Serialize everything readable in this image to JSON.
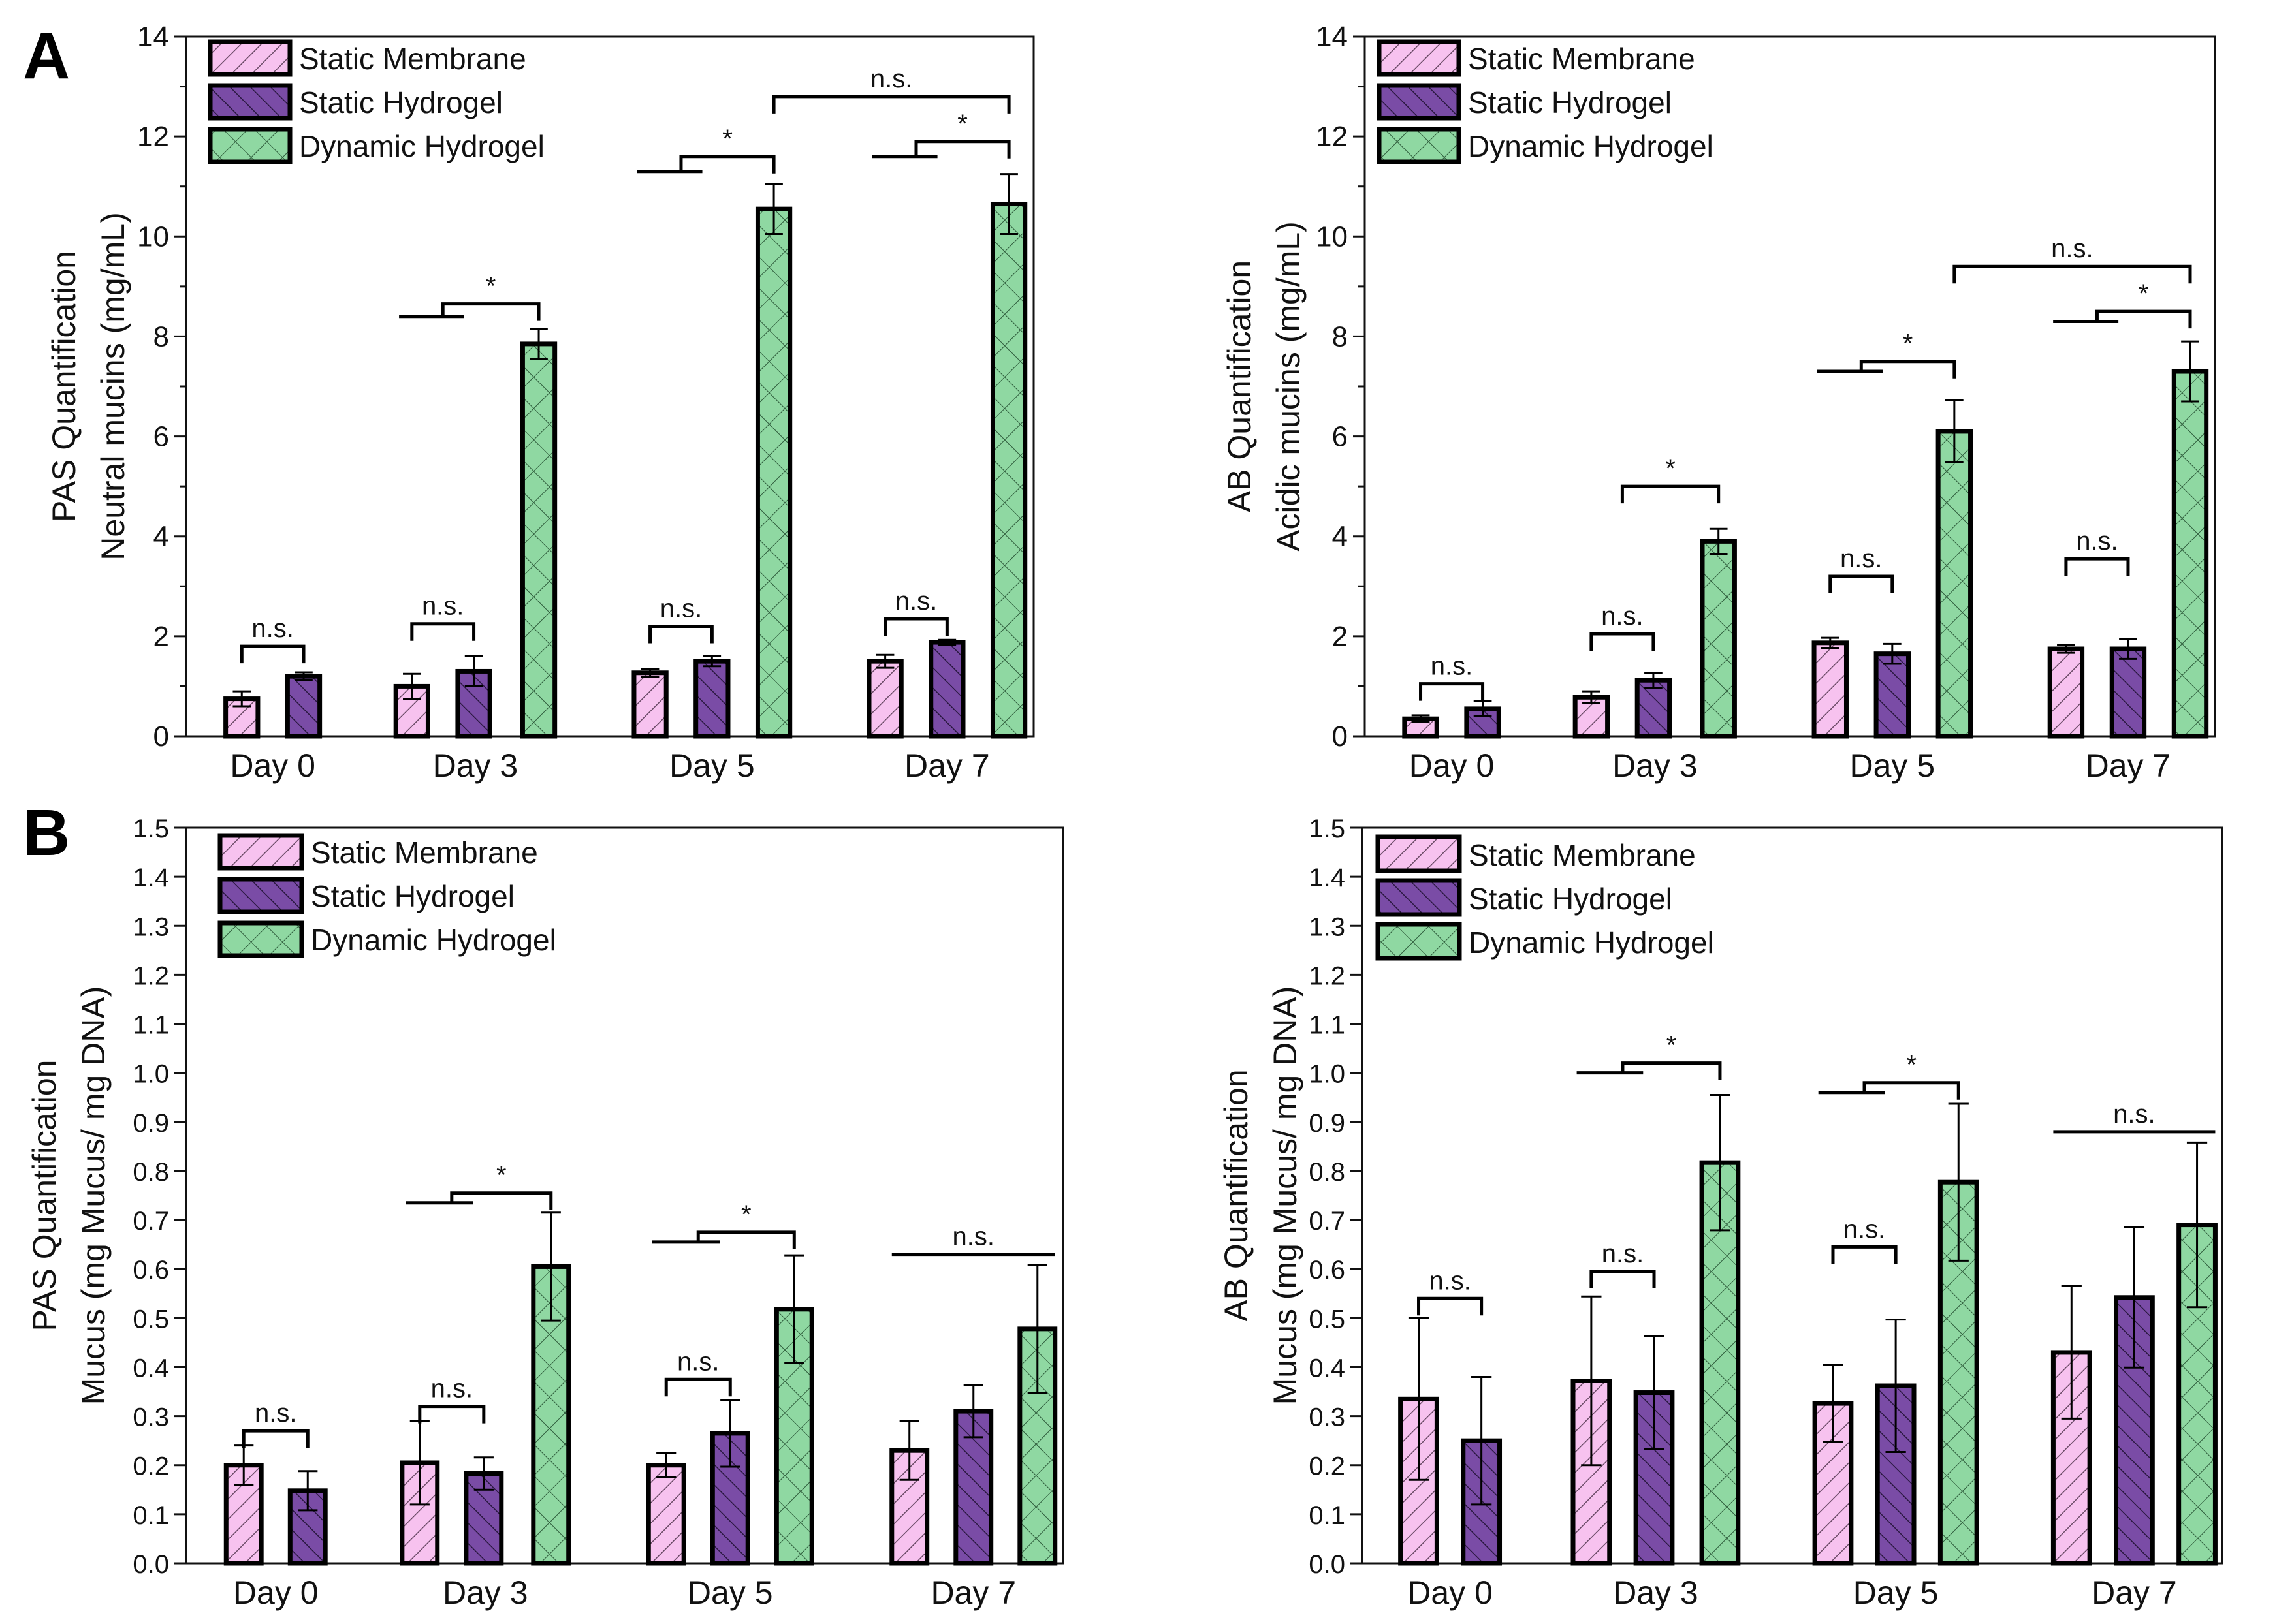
{
  "colors": {
    "static_membrane": "#f7c2ef",
    "static_hydrogel": "#7a4ca6",
    "dynamic_hydrogel": "#8fd8a2",
    "axis": "#111111"
  },
  "legend": [
    "Static Membrane",
    "Static Hydrogel",
    "Dynamic Hydrogel"
  ],
  "chart_data": [
    {
      "type": "bar",
      "panel_label": "A",
      "id": "a-left",
      "ylabel": [
        "PAS Quantification",
        "Neutral mucins (mg/mL)"
      ],
      "categories": [
        "Day 0",
        "Day 3",
        "Day 5",
        "Day 7"
      ],
      "ylim": [
        0,
        14
      ],
      "yticks": [
        0,
        2,
        4,
        6,
        8,
        10,
        12,
        14
      ],
      "tick_decimals": 0,
      "minor_step": 1,
      "legend_placement": "top-left",
      "series": [
        {
          "name": "Static Membrane",
          "values": [
            0.75,
            1.0,
            1.27,
            1.5
          ],
          "errors": [
            0.15,
            0.25,
            0.08,
            0.13
          ]
        },
        {
          "name": "Static Hydrogel",
          "values": [
            1.2,
            1.3,
            1.5,
            1.88
          ],
          "errors": [
            0.08,
            0.3,
            0.1,
            0.05
          ]
        },
        {
          "name": "Dynamic Hydrogel",
          "values": [
            null,
            7.85,
            10.55,
            10.65
          ],
          "errors": [
            null,
            0.3,
            0.5,
            0.6
          ]
        }
      ],
      "annotations": [
        {
          "kind": "bracket",
          "from": [
            0,
            0
          ],
          "to": [
            0,
            1
          ],
          "y": 1.8,
          "label": "n.s."
        },
        {
          "kind": "bracket",
          "from": [
            1,
            0
          ],
          "to": [
            1,
            1
          ],
          "y": 2.25,
          "label": "n.s."
        },
        {
          "kind": "combined",
          "from": [
            1,
            0
          ],
          "to": [
            1,
            2
          ],
          "y_low": 8.4,
          "y": 8.65,
          "label": "*"
        },
        {
          "kind": "bracket",
          "from": [
            2,
            0
          ],
          "to": [
            2,
            1
          ],
          "y": 2.2,
          "label": "n.s."
        },
        {
          "kind": "combined",
          "from": [
            2,
            0
          ],
          "to": [
            2,
            2
          ],
          "y_low": 11.3,
          "y": 11.6,
          "label": "*"
        },
        {
          "kind": "bracket",
          "from": [
            3,
            0
          ],
          "to": [
            3,
            1
          ],
          "y": 2.35,
          "label": "n.s."
        },
        {
          "kind": "combined",
          "from": [
            3,
            0
          ],
          "to": [
            3,
            2
          ],
          "y_low": 11.6,
          "y": 11.9,
          "label": "*"
        },
        {
          "kind": "bracket",
          "from": [
            2,
            2
          ],
          "to": [
            3,
            2
          ],
          "y": 12.8,
          "label": "n.s."
        }
      ]
    },
    {
      "type": "bar",
      "id": "a-right",
      "ylabel": [
        "AB Quantification",
        "Acidic mucins (mg/mL)"
      ],
      "categories": [
        "Day 0",
        "Day 3",
        "Day 5",
        "Day 7"
      ],
      "ylim": [
        0,
        14
      ],
      "yticks": [
        0,
        2,
        4,
        6,
        8,
        10,
        12,
        14
      ],
      "tick_decimals": 0,
      "minor_step": 1,
      "legend_placement": "top-left",
      "series": [
        {
          "name": "Static Membrane",
          "values": [
            0.35,
            0.78,
            1.87,
            1.75
          ],
          "errors": [
            0.07,
            0.12,
            0.1,
            0.08
          ]
        },
        {
          "name": "Static Hydrogel",
          "values": [
            0.55,
            1.12,
            1.65,
            1.75
          ],
          "errors": [
            0.15,
            0.15,
            0.2,
            0.2
          ]
        },
        {
          "name": "Dynamic Hydrogel",
          "values": [
            null,
            3.9,
            6.1,
            7.3
          ],
          "errors": [
            null,
            0.25,
            0.62,
            0.6
          ]
        }
      ],
      "annotations": [
        {
          "kind": "bracket",
          "from": [
            0,
            0
          ],
          "to": [
            0,
            1
          ],
          "y": 1.05,
          "label": "n.s."
        },
        {
          "kind": "bracket",
          "from": [
            1,
            0
          ],
          "to": [
            1,
            1
          ],
          "y": 2.05,
          "label": "n.s."
        },
        {
          "kind": "bracket",
          "from": [
            1,
            0.5
          ],
          "to": [
            1,
            2
          ],
          "y": 5.0,
          "label": "*"
        },
        {
          "kind": "bracket",
          "from": [
            2,
            0
          ],
          "to": [
            2,
            1
          ],
          "y": 3.2,
          "label": "n.s."
        },
        {
          "kind": "combined",
          "from": [
            2,
            0
          ],
          "to": [
            2,
            2
          ],
          "y_low": 7.3,
          "y": 7.5,
          "label": "*"
        },
        {
          "kind": "bracket",
          "from": [
            3,
            0
          ],
          "to": [
            3,
            1
          ],
          "y": 3.55,
          "label": "n.s."
        },
        {
          "kind": "combined",
          "from": [
            3,
            0
          ],
          "to": [
            3,
            2
          ],
          "y_low": 8.3,
          "y": 8.5,
          "label": "*"
        },
        {
          "kind": "bracket",
          "from": [
            2,
            2
          ],
          "to": [
            3,
            2
          ],
          "y": 9.4,
          "label": "n.s."
        }
      ]
    },
    {
      "type": "bar",
      "panel_label": "B",
      "id": "b-left",
      "ylabel": [
        "PAS Quantification",
        "Mucus (mg Mucus/ mg DNA)"
      ],
      "categories": [
        "Day 0",
        "Day 3",
        "Day 5",
        "Day 7"
      ],
      "ylim": [
        0,
        1.5
      ],
      "yticks": [
        0.0,
        0.1,
        0.2,
        0.3,
        0.4,
        0.5,
        0.6,
        0.7,
        0.8,
        0.9,
        1.0,
        1.1,
        1.2,
        1.3,
        1.4,
        1.5
      ],
      "tick_decimals": 1,
      "minor_step": null,
      "legend_placement": "top-left",
      "series": [
        {
          "name": "Static Membrane",
          "values": [
            0.2,
            0.205,
            0.2,
            0.23
          ],
          "errors": [
            0.04,
            0.085,
            0.025,
            0.06
          ]
        },
        {
          "name": "Static Hydrogel",
          "values": [
            0.148,
            0.183,
            0.265,
            0.31
          ],
          "errors": [
            0.04,
            0.033,
            0.068,
            0.053
          ]
        },
        {
          "name": "Dynamic Hydrogel",
          "values": [
            null,
            0.605,
            0.518,
            0.478
          ],
          "errors": [
            null,
            0.11,
            0.11,
            0.13
          ]
        }
      ],
      "annotations": [
        {
          "kind": "bracket",
          "from": [
            0,
            0
          ],
          "to": [
            0,
            1
          ],
          "y": 0.27,
          "label": "n.s."
        },
        {
          "kind": "bracket",
          "from": [
            1,
            0
          ],
          "to": [
            1,
            1
          ],
          "y": 0.32,
          "label": "n.s."
        },
        {
          "kind": "combined",
          "from": [
            1,
            0
          ],
          "to": [
            1,
            2
          ],
          "y_low": 0.735,
          "y": 0.755,
          "label": "*"
        },
        {
          "kind": "bracket",
          "from": [
            2,
            0
          ],
          "to": [
            2,
            1
          ],
          "y": 0.375,
          "label": "n.s."
        },
        {
          "kind": "combined",
          "from": [
            2,
            0
          ],
          "to": [
            2,
            2
          ],
          "y_low": 0.655,
          "y": 0.675,
          "label": "*"
        },
        {
          "kind": "line",
          "from": [
            3,
            0
          ],
          "to": [
            3,
            2
          ],
          "y": 0.63,
          "label": "n.s."
        }
      ]
    },
    {
      "type": "bar",
      "id": "b-right",
      "ylabel": [
        "AB Quantification",
        "Mucus (mg Mucus/ mg DNA)"
      ],
      "categories": [
        "Day 0",
        "Day 3",
        "Day 5",
        "Day 7"
      ],
      "ylim": [
        0,
        1.5
      ],
      "yticks": [
        0.0,
        0.1,
        0.2,
        0.3,
        0.4,
        0.5,
        0.6,
        0.7,
        0.8,
        0.9,
        1.0,
        1.1,
        1.2,
        1.3,
        1.4,
        1.5
      ],
      "tick_decimals": 1,
      "minor_step": null,
      "legend_placement": "top-left",
      "series": [
        {
          "name": "Static Membrane",
          "values": [
            0.335,
            0.372,
            0.326,
            0.43
          ],
          "errors": [
            0.165,
            0.172,
            0.078,
            0.135
          ]
        },
        {
          "name": "Static Hydrogel",
          "values": [
            0.25,
            0.348,
            0.362,
            0.542
          ],
          "errors": [
            0.13,
            0.115,
            0.135,
            0.143
          ]
        },
        {
          "name": "Dynamic Hydrogel",
          "values": [
            null,
            0.817,
            0.777,
            0.69
          ],
          "errors": [
            null,
            0.138,
            0.16,
            0.168
          ]
        }
      ],
      "annotations": [
        {
          "kind": "bracket",
          "from": [
            0,
            0
          ],
          "to": [
            0,
            1
          ],
          "y": 0.54,
          "label": "n.s."
        },
        {
          "kind": "bracket",
          "from": [
            1,
            0
          ],
          "to": [
            1,
            1
          ],
          "y": 0.595,
          "label": "n.s."
        },
        {
          "kind": "combined",
          "from": [
            1,
            0
          ],
          "to": [
            1,
            2
          ],
          "y_low": 1.0,
          "y": 1.02,
          "label": "*"
        },
        {
          "kind": "bracket",
          "from": [
            2,
            0
          ],
          "to": [
            2,
            1
          ],
          "y": 0.645,
          "label": "n.s."
        },
        {
          "kind": "combined",
          "from": [
            2,
            0
          ],
          "to": [
            2,
            2
          ],
          "y_low": 0.96,
          "y": 0.98,
          "label": "*"
        },
        {
          "kind": "line",
          "from": [
            3,
            0
          ],
          "to": [
            3,
            2
          ],
          "y": 0.88,
          "label": "n.s."
        }
      ]
    }
  ]
}
